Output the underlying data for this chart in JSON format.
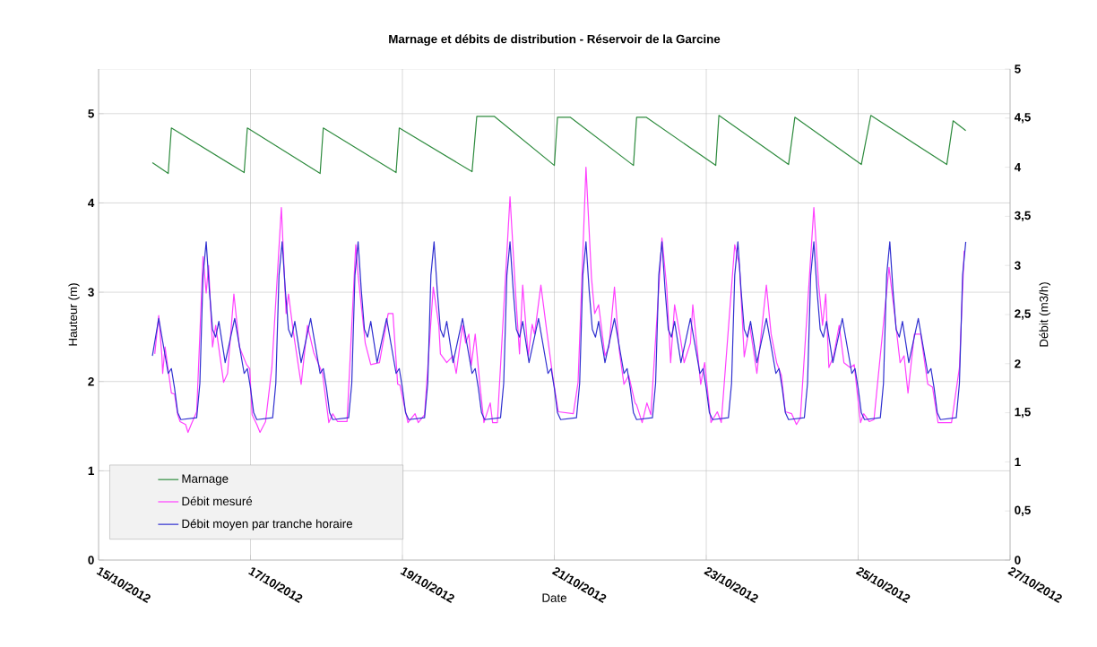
{
  "chart_data": {
    "type": "line",
    "title": "Marnage et débits de distribution - Réservoir de la Garcine",
    "xlabel": "Date",
    "ylabel": "Hauteur (m)",
    "y2label": "Débit (m3/h)",
    "xlim": [
      "2012-10-15",
      "2012-10-27"
    ],
    "xticks": [
      {
        "value": "2012-10-15",
        "label": "15/10/2012"
      },
      {
        "value": "2012-10-17",
        "label": "17/10/2012"
      },
      {
        "value": "2012-10-19",
        "label": "19/10/2012"
      },
      {
        "value": "2012-10-21",
        "label": "21/10/2012"
      },
      {
        "value": "2012-10-23",
        "label": "23/10/2012"
      },
      {
        "value": "2012-10-25",
        "label": "25/10/2012"
      },
      {
        "value": "2012-10-27",
        "label": "27/10/2012"
      }
    ],
    "ylim": [
      0,
      5.5
    ],
    "yticks": [
      0,
      1,
      2,
      3,
      4,
      5
    ],
    "y2lim": [
      0,
      5
    ],
    "y2ticks": [
      0,
      {
        "value": 0.5,
        "label": "0,5"
      },
      1,
      {
        "value": 1.5,
        "label": "1,5"
      },
      2,
      {
        "value": 2.5,
        "label": "2,5"
      },
      3,
      {
        "value": 3.5,
        "label": "3,5"
      },
      4,
      {
        "value": 4.5,
        "label": "4,5"
      },
      5
    ],
    "grid": true,
    "legend": "bottom left",
    "marker": "none",
    "line_style": "solid",
    "series": [
      {
        "name": "Marnage",
        "color": "#2e8b3e",
        "x": [
          "2012-10-15T17:00",
          "2012-10-15T22:00",
          "2012-10-15T23:00",
          "2012-10-16T22:00",
          "2012-10-16T23:00",
          "2012-10-17T22:00",
          "2012-10-17T23:00",
          "2012-10-18T22:00",
          "2012-10-18T23:00",
          "2012-10-19T22:00",
          "2012-10-19T23:30",
          "2012-10-20T05:00",
          "2012-10-21T00:00",
          "2012-10-21T01:00",
          "2012-10-21T05:00",
          "2012-10-22T01:00",
          "2012-10-22T02:00",
          "2012-10-22T05:00",
          "2012-10-23T03:00",
          "2012-10-23T04:00",
          "2012-10-24T02:00",
          "2012-10-24T04:00",
          "2012-10-25T01:00",
          "2012-10-25T04:00",
          "2012-10-26T04:00",
          "2012-10-26T06:00",
          "2012-10-26T10:00"
        ],
        "values": [
          4.45,
          4.33,
          4.84,
          4.34,
          4.84,
          4.33,
          4.84,
          4.34,
          4.84,
          4.35,
          4.97,
          4.97,
          4.42,
          4.96,
          4.96,
          4.42,
          4.96,
          4.96,
          4.42,
          4.98,
          4.43,
          4.96,
          4.43,
          4.98,
          4.43,
          4.92,
          4.81
        ]
      },
      {
        "name": "Débit mesuré",
        "color": "#ff40ff",
        "axis": "y2",
        "x": [
          "2012-10-15T17:45",
          "2012-10-15T19:00",
          "2012-10-15T20:00",
          "2012-10-15T20:15",
          "2012-10-15T21:00",
          "2012-10-15T23:00",
          "2012-10-16T00:00",
          "2012-10-16T01:00",
          "2012-10-16T01:45",
          "2012-10-16T03:30",
          "2012-10-16T04:15",
          "2012-10-16T05:15",
          "2012-10-16T07:00",
          "2012-10-16T09:00",
          "2012-10-16T10:00",
          "2012-10-16T10:45",
          "2012-10-16T12:00",
          "2012-10-16T13:00",
          "2012-10-16T15:30",
          "2012-10-16T16:45",
          "2012-10-16T18:45",
          "2012-10-16T20:30",
          "2012-10-16T22:45",
          "2012-10-16T23:45",
          "2012-10-17T00:30",
          "2012-10-17T02:00",
          "2012-10-17T03:00",
          "2012-10-17T04:45",
          "2012-10-17T06:45",
          "2012-10-17T09:45",
          "2012-10-17T11:15",
          "2012-10-17T12:00",
          "2012-10-17T13:30",
          "2012-10-17T16:00",
          "2012-10-17T18:00",
          "2012-10-17T20:00",
          "2012-10-17T22:45",
          "2012-10-18T00:45",
          "2012-10-18T02:00",
          "2012-10-18T03:30",
          "2012-10-18T06:30",
          "2012-10-18T09:15",
          "2012-10-18T10:00",
          "2012-10-18T12:15",
          "2012-10-18T14:00",
          "2012-10-18T16:45",
          "2012-10-18T19:30",
          "2012-10-18T21:00",
          "2012-10-18T22:30",
          "2012-10-18T23:15",
          "2012-10-19T00:00",
          "2012-10-19T01:45",
          "2012-10-19T04:00",
          "2012-10-19T05:00",
          "2012-10-19T07:00",
          "2012-10-19T09:45",
          "2012-10-19T11:30",
          "2012-10-19T12:00",
          "2012-10-19T14:00",
          "2012-10-19T16:00",
          "2012-10-19T17:00",
          "2012-10-19T19:00",
          "2012-10-19T20:00",
          "2012-10-19T21:00",
          "2012-10-19T21:45",
          "2012-10-19T23:00",
          "2012-10-20T00:30",
          "2012-10-20T01:45",
          "2012-10-20T03:45",
          "2012-10-20T04:30",
          "2012-10-20T06:00",
          "2012-10-20T10:00",
          "2012-10-20T11:45",
          "2012-10-20T13:00",
          "2012-10-20T14:00",
          "2012-10-20T15:45",
          "2012-10-20T17:00",
          "2012-10-20T17:45",
          "2012-10-20T19:45",
          "2012-10-20T21:30",
          "2012-10-20T23:30",
          "2012-10-21T01:15",
          "2012-10-21T06:00",
          "2012-10-21T07:30",
          "2012-10-21T10:00",
          "2012-10-21T11:45",
          "2012-10-21T12:45",
          "2012-10-21T14:00",
          "2012-10-21T16:00",
          "2012-10-21T17:15",
          "2012-10-21T19:00",
          "2012-10-21T20:30",
          "2012-10-21T22:00",
          "2012-10-21T23:30",
          "2012-10-22T01:30",
          "2012-10-22T02:00",
          "2012-10-22T03:45",
          "2012-10-22T05:15",
          "2012-10-22T06:30",
          "2012-10-22T10:00",
          "2012-10-22T11:30",
          "2012-10-22T12:45",
          "2012-10-22T14:00",
          "2012-10-22T15:45",
          "2012-10-22T17:00",
          "2012-10-22T19:00",
          "2012-10-22T19:45",
          "2012-10-22T22:15",
          "2012-10-22T23:30",
          "2012-10-23T01:30",
          "2012-10-23T03:30",
          "2012-10-23T04:45",
          "2012-10-23T09:00",
          "2012-10-23T10:30",
          "2012-10-23T12:00",
          "2012-10-23T13:45",
          "2012-10-23T16:00",
          "2012-10-23T17:00",
          "2012-10-23T19:00",
          "2012-10-23T20:30",
          "2012-10-23T22:15",
          "2012-10-23T23:45",
          "2012-10-24T01:00",
          "2012-10-24T03:00",
          "2012-10-24T04:30",
          "2012-10-24T05:45",
          "2012-10-24T10:00",
          "2012-10-24T11:30",
          "2012-10-24T12:45",
          "2012-10-24T13:45",
          "2012-10-24T14:45",
          "2012-10-24T16:15",
          "2012-10-24T18:00",
          "2012-10-24T19:30",
          "2012-10-24T21:30",
          "2012-10-24T22:45",
          "2012-10-25T00:45",
          "2012-10-25T01:45",
          "2012-10-25T03:30",
          "2012-10-25T05:00",
          "2012-10-25T09:45",
          "2012-10-25T11:30",
          "2012-10-25T13:15",
          "2012-10-25T14:30",
          "2012-10-25T15:45",
          "2012-10-25T17:45",
          "2012-10-25T19:45",
          "2012-10-25T22:00",
          "2012-10-25T23:30",
          "2012-10-26T01:15",
          "2012-10-26T05:30",
          "2012-10-26T08:00",
          "2012-10-26T09:30"
        ],
        "values": [
          2.1,
          2.49,
          2.08,
          1.9,
          2.17,
          1.7,
          1.69,
          1.48,
          1.41,
          1.38,
          1.3,
          1.38,
          1.51,
          3.09,
          2.72,
          3.0,
          2.17,
          2.39,
          1.81,
          1.9,
          2.71,
          2.17,
          1.99,
          1.95,
          1.48,
          1.38,
          1.3,
          1.41,
          1.96,
          3.59,
          2.51,
          2.71,
          2.33,
          1.79,
          2.39,
          2.11,
          1.9,
          1.4,
          1.49,
          1.41,
          1.41,
          3.21,
          2.9,
          2.21,
          1.99,
          2.01,
          2.51,
          2.51,
          1.79,
          1.78,
          1.66,
          1.4,
          1.49,
          1.4,
          1.48,
          2.78,
          2.39,
          2.1,
          2.01,
          2.08,
          1.9,
          2.39,
          2.21,
          2.3,
          1.98,
          2.3,
          1.78,
          1.4,
          1.6,
          1.4,
          1.4,
          3.7,
          2.72,
          2.1,
          2.8,
          2.08,
          2.4,
          2.3,
          2.8,
          2.36,
          1.87,
          1.51,
          1.49,
          1.81,
          4.0,
          2.87,
          2.51,
          2.6,
          2.08,
          2.17,
          2.78,
          2.14,
          1.79,
          1.88,
          1.6,
          1.58,
          1.4,
          1.6,
          1.48,
          3.28,
          2.78,
          2.01,
          2.6,
          2.28,
          2.01,
          2.21,
          2.6,
          1.79,
          2.01,
          1.4,
          1.51,
          1.4,
          3.21,
          3.0,
          2.07,
          2.39,
          1.9,
          2.19,
          2.8,
          2.3,
          2.01,
          1.88,
          1.51,
          1.49,
          1.38,
          1.45,
          3.59,
          2.81,
          2.39,
          2.71,
          1.96,
          2.08,
          2.39,
          2.01,
          1.96,
          1.99,
          1.4,
          1.49,
          1.41,
          1.43,
          2.98,
          2.51,
          2.01,
          2.08,
          1.7,
          2.3,
          2.3,
          1.79,
          1.76,
          1.4,
          1.4,
          1.96,
          3.15
        ]
      },
      {
        "name": "Débit moyen par tranche horaire",
        "color": "#3030d0",
        "axis": "y2",
        "x": [
          "2012-10-15T17:00",
          "2012-10-15T19:00",
          "2012-10-15T22:00",
          "2012-10-15T23:00",
          "2012-10-16T00:00",
          "2012-10-16T01:00",
          "2012-10-16T02:00",
          "2012-10-16T07:00",
          "2012-10-16T08:00",
          "2012-10-16T09:00",
          "2012-10-16T10:00",
          "2012-10-16T11:00",
          "2012-10-16T12:00",
          "2012-10-16T13:00",
          "2012-10-16T14:00",
          "2012-10-16T16:00",
          "2012-10-16T19:00",
          "2012-10-16T22:00",
          "2012-10-16T23:00",
          "2012-10-17T00:00",
          "2012-10-17T01:00",
          "2012-10-17T02:00",
          "2012-10-17T07:00",
          "2012-10-17T08:00",
          "2012-10-17T09:00",
          "2012-10-17T10:00",
          "2012-10-17T11:00",
          "2012-10-17T12:00",
          "2012-10-17T13:00",
          "2012-10-17T14:00",
          "2012-10-17T16:00",
          "2012-10-17T19:00",
          "2012-10-17T22:00",
          "2012-10-17T23:00",
          "2012-10-18T00:00",
          "2012-10-18T01:00",
          "2012-10-18T02:00",
          "2012-10-18T07:00",
          "2012-10-18T08:00",
          "2012-10-18T09:00",
          "2012-10-18T10:00",
          "2012-10-18T11:00",
          "2012-10-18T12:00",
          "2012-10-18T13:00",
          "2012-10-18T14:00",
          "2012-10-18T16:00",
          "2012-10-18T19:00",
          "2012-10-18T22:00",
          "2012-10-18T23:00",
          "2012-10-19T00:00",
          "2012-10-19T01:00",
          "2012-10-19T02:00",
          "2012-10-19T07:00",
          "2012-10-19T08:00",
          "2012-10-19T09:00",
          "2012-10-19T10:00",
          "2012-10-19T11:00",
          "2012-10-19T12:00",
          "2012-10-19T13:00",
          "2012-10-19T14:00",
          "2012-10-19T16:00",
          "2012-10-19T19:00",
          "2012-10-19T22:00",
          "2012-10-19T23:00",
          "2012-10-20T00:00",
          "2012-10-20T01:00",
          "2012-10-20T02:00",
          "2012-10-20T07:00",
          "2012-10-20T08:00",
          "2012-10-20T09:00",
          "2012-10-20T10:00",
          "2012-10-20T11:00",
          "2012-10-20T12:00",
          "2012-10-20T13:00",
          "2012-10-20T14:00",
          "2012-10-20T16:00",
          "2012-10-20T19:00",
          "2012-10-20T22:00",
          "2012-10-20T23:00",
          "2012-10-21T00:00",
          "2012-10-21T01:00",
          "2012-10-21T02:00",
          "2012-10-21T07:00",
          "2012-10-21T08:00",
          "2012-10-21T09:00",
          "2012-10-21T10:00",
          "2012-10-21T11:00",
          "2012-10-21T12:00",
          "2012-10-21T13:00",
          "2012-10-21T14:00",
          "2012-10-21T16:00",
          "2012-10-21T19:00",
          "2012-10-21T22:00",
          "2012-10-21T23:00",
          "2012-10-22T00:00",
          "2012-10-22T01:00",
          "2012-10-22T02:00",
          "2012-10-22T07:00",
          "2012-10-22T08:00",
          "2012-10-22T09:00",
          "2012-10-22T10:00",
          "2012-10-22T11:00",
          "2012-10-22T12:00",
          "2012-10-22T13:00",
          "2012-10-22T14:00",
          "2012-10-22T16:00",
          "2012-10-22T19:00",
          "2012-10-22T22:00",
          "2012-10-22T23:00",
          "2012-10-23T00:00",
          "2012-10-23T01:00",
          "2012-10-23T02:00",
          "2012-10-23T07:00",
          "2012-10-23T08:00",
          "2012-10-23T09:00",
          "2012-10-23T10:00",
          "2012-10-23T11:00",
          "2012-10-23T12:00",
          "2012-10-23T13:00",
          "2012-10-23T14:00",
          "2012-10-23T16:00",
          "2012-10-23T19:00",
          "2012-10-23T22:00",
          "2012-10-23T23:00",
          "2012-10-24T00:00",
          "2012-10-24T01:00",
          "2012-10-24T02:00",
          "2012-10-24T07:00",
          "2012-10-24T08:00",
          "2012-10-24T09:00",
          "2012-10-24T10:00",
          "2012-10-24T11:00",
          "2012-10-24T12:00",
          "2012-10-24T13:00",
          "2012-10-24T14:00",
          "2012-10-24T16:00",
          "2012-10-24T19:00",
          "2012-10-24T22:00",
          "2012-10-24T23:00",
          "2012-10-25T00:00",
          "2012-10-25T01:00",
          "2012-10-25T02:00",
          "2012-10-25T07:00",
          "2012-10-25T08:00",
          "2012-10-25T09:00",
          "2012-10-25T10:00",
          "2012-10-25T11:00",
          "2012-10-25T12:00",
          "2012-10-25T13:00",
          "2012-10-25T14:00",
          "2012-10-25T16:00",
          "2012-10-25T19:00",
          "2012-10-25T22:00",
          "2012-10-25T23:00",
          "2012-10-26T00:00",
          "2012-10-26T01:00",
          "2012-10-26T02:00",
          "2012-10-26T07:00",
          "2012-10-26T08:00",
          "2012-10-26T09:00",
          "2012-10-26T10:00"
        ],
        "values": [
          2.08,
          2.46,
          1.9,
          1.95,
          1.75,
          1.5,
          1.43,
          1.45,
          1.8,
          2.9,
          3.24,
          2.75,
          2.35,
          2.27,
          2.43,
          2.01,
          2.46,
          1.9,
          1.95,
          1.75,
          1.5,
          1.43,
          1.45,
          1.8,
          2.9,
          3.24,
          2.75,
          2.35,
          2.27,
          2.43,
          2.01,
          2.46,
          1.9,
          1.95,
          1.75,
          1.5,
          1.43,
          1.45,
          1.8,
          2.9,
          3.24,
          2.75,
          2.35,
          2.27,
          2.43,
          2.01,
          2.46,
          1.9,
          1.95,
          1.75,
          1.5,
          1.43,
          1.45,
          1.8,
          2.9,
          3.24,
          2.75,
          2.35,
          2.27,
          2.43,
          2.01,
          2.46,
          1.9,
          1.95,
          1.75,
          1.5,
          1.43,
          1.45,
          1.8,
          2.9,
          3.24,
          2.75,
          2.35,
          2.27,
          2.43,
          2.01,
          2.46,
          1.9,
          1.95,
          1.75,
          1.5,
          1.43,
          1.45,
          1.8,
          2.9,
          3.24,
          2.75,
          2.35,
          2.27,
          2.43,
          2.01,
          2.46,
          1.9,
          1.95,
          1.75,
          1.5,
          1.43,
          1.45,
          1.8,
          2.9,
          3.24,
          2.75,
          2.35,
          2.27,
          2.43,
          2.01,
          2.46,
          1.9,
          1.95,
          1.75,
          1.5,
          1.43,
          1.45,
          1.8,
          2.9,
          3.24,
          2.75,
          2.35,
          2.27,
          2.43,
          2.01,
          2.46,
          1.9,
          1.95,
          1.75,
          1.5,
          1.43,
          1.45,
          1.8,
          2.9,
          3.24,
          2.75,
          2.35,
          2.27,
          2.43,
          2.01,
          2.46,
          1.9,
          1.95,
          1.75,
          1.5,
          1.43,
          1.45,
          1.8,
          2.9,
          3.24,
          2.75,
          2.35,
          2.27,
          2.43,
          2.01,
          2.46,
          1.9,
          1.95,
          1.75,
          1.5,
          1.43,
          1.45,
          1.8,
          2.9,
          3.24
        ]
      }
    ]
  }
}
